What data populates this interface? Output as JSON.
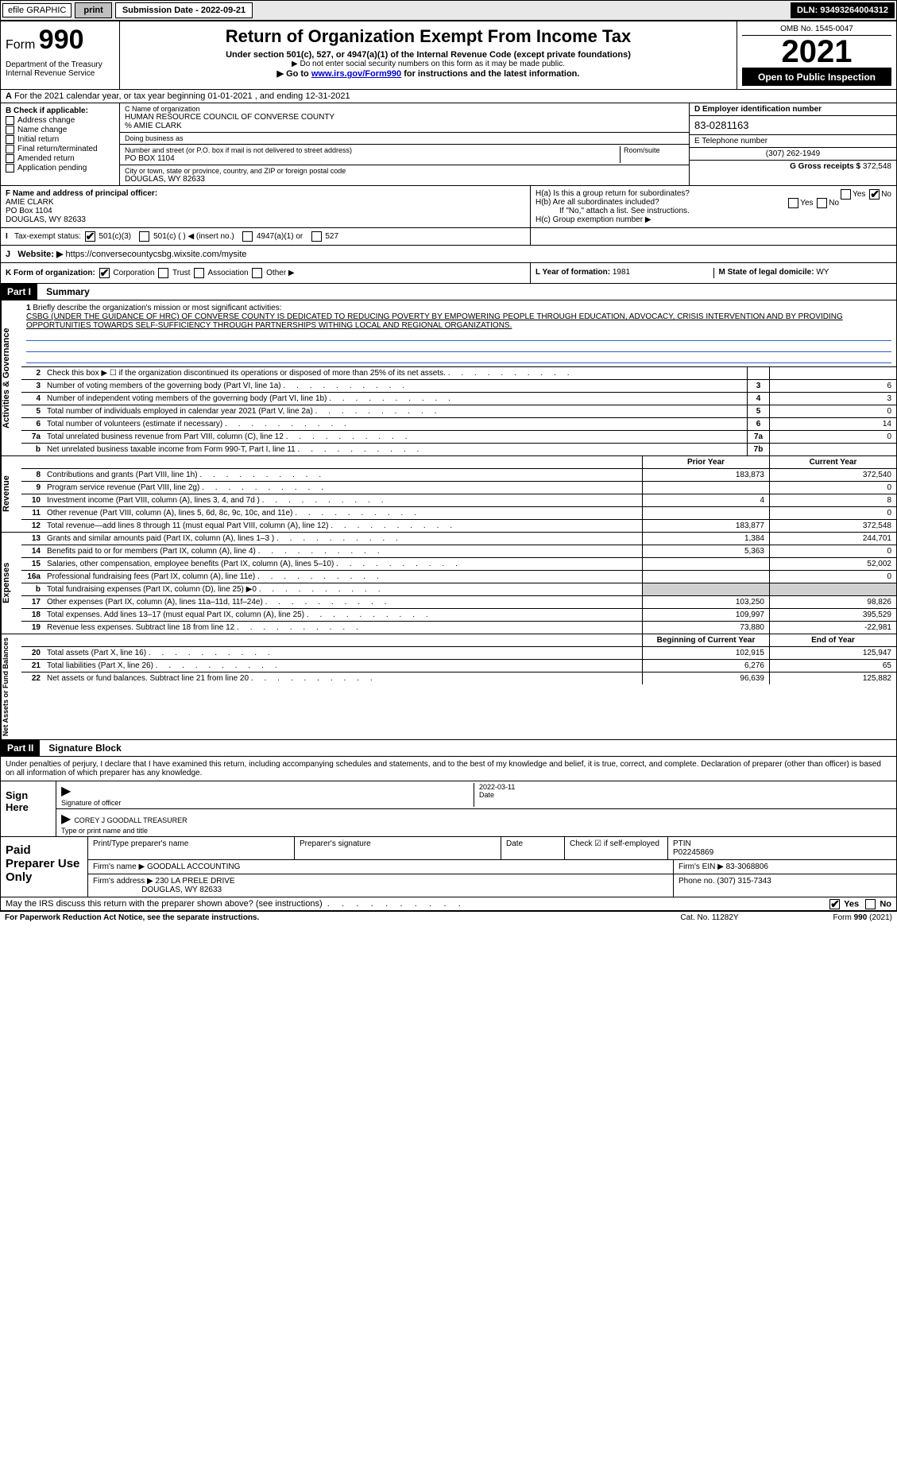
{
  "topbar": {
    "efile": "efile GRAPHIC",
    "print": "print",
    "subdate_label": "Submission Date - 2022-09-21",
    "dln": "DLN: 93493264004312"
  },
  "header": {
    "form_label": "Form",
    "form_num": "990",
    "title": "Return of Organization Exempt From Income Tax",
    "sub1": "Under section 501(c), 527, or 4947(a)(1) of the Internal Revenue Code (except private foundations)",
    "sub2": "▶ Do not enter social security numbers on this form as it may be made public.",
    "sub3_pre": "▶ Go to ",
    "sub3_link": "www.irs.gov/Form990",
    "sub3_post": " for instructions and the latest information.",
    "dept": "Department of the Treasury Internal Revenue Service",
    "omb": "OMB No. 1545-0047",
    "year": "2021",
    "open": "Open to Public Inspection"
  },
  "A": "For the 2021 calendar year, or tax year beginning 01-01-2021    , and ending 12-31-2021",
  "B": {
    "label": "B Check if applicable:",
    "items": [
      "Address change",
      "Name change",
      "Initial return",
      "Final return/terminated",
      "Amended return",
      "Application pending"
    ]
  },
  "C": {
    "name_label": "C Name of organization",
    "name": "HUMAN RESOURCE COUNCIL OF CONVERSE COUNTY",
    "care_label": "% AMIE CLARK",
    "dba_label": "Doing business as",
    "street_label": "Number and street (or P.O. box if mail is not delivered to street address)",
    "room_label": "Room/suite",
    "street": "PO BOX 1104",
    "city_label": "City or town, state or province, country, and ZIP or foreign postal code",
    "city": "DOUGLAS, WY  82633"
  },
  "D": {
    "ein_label": "D Employer identification number",
    "ein": "83-0281163",
    "phone_label": "E Telephone number",
    "phone": "(307) 262-1949",
    "gross_label": "G Gross receipts $",
    "gross": "372,548"
  },
  "F": {
    "label": "F  Name and address of principal officer:",
    "name": "AMIE CLARK",
    "addr1": "PO Box 1104",
    "addr2": "DOUGLAS, WY  82633"
  },
  "H": {
    "a": "H(a)  Is this a group return for subordinates?",
    "b": "H(b)  Are all subordinates included?",
    "b2": "If \"No,\" attach a list. See instructions.",
    "c": "H(c)  Group exemption number ▶",
    "yes": "Yes",
    "no": "No"
  },
  "I": {
    "label": "Tax-exempt status:",
    "opts": [
      "501(c)(3)",
      "501(c) (   ) ◀ (insert no.)",
      "4947(a)(1) or",
      "527"
    ]
  },
  "J": {
    "label": "Website: ▶",
    "url": "https://conversecountycsbg.wixsite.com/mysite"
  },
  "K": {
    "label": "K Form of organization:",
    "opts": [
      "Corporation",
      "Trust",
      "Association",
      "Other ▶"
    ]
  },
  "L": {
    "year_label": "L Year of formation:",
    "year": "1981",
    "state_label": "M State of legal domicile:",
    "state": "WY"
  },
  "part1": {
    "hdr": "Part I",
    "label": "Summary"
  },
  "mission": {
    "num": "1",
    "label": "Briefly describe the organization's mission or most significant activities:",
    "text": "CSBG (UNDER THE GUIDANCE OF HRC) OF CONVERSE COUNTY IS DEDICATED TO REDUCING POVERTY BY EMPOWERING PEOPLE THROUGH EDUCATION, ADVOCACY, CRISIS INTERVENTION AND BY PROVIDING OPPORTUNITIES TOWARDS SELF-SUFFICIENCY THROUGH PARTNERSHIPS WITHING LOCAL AND REGIONAL ORGANIZATIONS."
  },
  "gov": {
    "tab": "Activities & Governance",
    "rows": [
      {
        "n": "2",
        "t": "Check this box ▶ ☐  if the organization discontinued its operations or disposed of more than 25% of its net assets.",
        "box": "",
        "v": ""
      },
      {
        "n": "3",
        "t": "Number of voting members of the governing body (Part VI, line 1a)",
        "box": "3",
        "v": "6"
      },
      {
        "n": "4",
        "t": "Number of independent voting members of the governing body (Part VI, line 1b)",
        "box": "4",
        "v": "3"
      },
      {
        "n": "5",
        "t": "Total number of individuals employed in calendar year 2021 (Part V, line 2a)",
        "box": "5",
        "v": "0"
      },
      {
        "n": "6",
        "t": "Total number of volunteers (estimate if necessary)",
        "box": "6",
        "v": "14"
      },
      {
        "n": "7a",
        "t": "Total unrelated business revenue from Part VIII, column (C), line 12",
        "box": "7a",
        "v": "0"
      },
      {
        "n": "b",
        "t": "Net unrelated business taxable income from Form 990-T, Part I, line 11",
        "box": "7b",
        "v": ""
      }
    ]
  },
  "rev": {
    "tab": "Revenue",
    "hdr_prior": "Prior Year",
    "hdr_curr": "Current Year",
    "rows": [
      {
        "n": "8",
        "t": "Contributions and grants (Part VIII, line 1h)",
        "p": "183,873",
        "c": "372,540"
      },
      {
        "n": "9",
        "t": "Program service revenue (Part VIII, line 2g)",
        "p": "",
        "c": "0"
      },
      {
        "n": "10",
        "t": "Investment income (Part VIII, column (A), lines 3, 4, and 7d )",
        "p": "4",
        "c": "8"
      },
      {
        "n": "11",
        "t": "Other revenue (Part VIII, column (A), lines 5, 6d, 8c, 9c, 10c, and 11e)",
        "p": "",
        "c": "0"
      },
      {
        "n": "12",
        "t": "Total revenue—add lines 8 through 11 (must equal Part VIII, column (A), line 12)",
        "p": "183,877",
        "c": "372,548"
      }
    ]
  },
  "exp": {
    "tab": "Expenses",
    "rows": [
      {
        "n": "13",
        "t": "Grants and similar amounts paid (Part IX, column (A), lines 1–3 )",
        "p": "1,384",
        "c": "244,701"
      },
      {
        "n": "14",
        "t": "Benefits paid to or for members (Part IX, column (A), line 4)",
        "p": "5,363",
        "c": "0"
      },
      {
        "n": "15",
        "t": "Salaries, other compensation, employee benefits (Part IX, column (A), lines 5–10)",
        "p": "",
        "c": "52,002"
      },
      {
        "n": "16a",
        "t": "Professional fundraising fees (Part IX, column (A), line 11e)",
        "p": "",
        "c": "0"
      },
      {
        "n": "b",
        "t": "Total fundraising expenses (Part IX, column (D), line 25) ▶0",
        "p": "shaded",
        "c": "shaded"
      },
      {
        "n": "17",
        "t": "Other expenses (Part IX, column (A), lines 11a–11d, 11f–24e)",
        "p": "103,250",
        "c": "98,826"
      },
      {
        "n": "18",
        "t": "Total expenses. Add lines 13–17 (must equal Part IX, column (A), line 25)",
        "p": "109,997",
        "c": "395,529"
      },
      {
        "n": "19",
        "t": "Revenue less expenses. Subtract line 18 from line 12",
        "p": "73,880",
        "c": "-22,981"
      }
    ]
  },
  "net": {
    "tab": "Net Assets or Fund Balances",
    "hdr_beg": "Beginning of Current Year",
    "hdr_end": "End of Year",
    "rows": [
      {
        "n": "20",
        "t": "Total assets (Part X, line 16)",
        "p": "102,915",
        "c": "125,947"
      },
      {
        "n": "21",
        "t": "Total liabilities (Part X, line 26)",
        "p": "6,276",
        "c": "65"
      },
      {
        "n": "22",
        "t": "Net assets or fund balances. Subtract line 21 from line 20",
        "p": "96,639",
        "c": "125,882"
      }
    ]
  },
  "part2": {
    "hdr": "Part II",
    "label": "Signature Block"
  },
  "sig": {
    "penalty": "Under penalties of perjury, I declare that I have examined this return, including accompanying schedules and statements, and to the best of my knowledge and belief, it is true, correct, and complete. Declaration of preparer (other than officer) is based on all information of which preparer has any knowledge.",
    "sign_here": "Sign Here",
    "sig_officer": "Signature of officer",
    "date": "Date",
    "date_val": "2022-03-11",
    "name": "COREY J GOODALL  TREASURER",
    "name_label": "Type or print name and title"
  },
  "paid": {
    "label": "Paid Preparer Use Only",
    "h1": "Print/Type preparer's name",
    "h2": "Preparer's signature",
    "h3": "Date",
    "h4": "Check ☑ if self-employed",
    "h5_label": "PTIN",
    "h5": "P02245869",
    "firm_label": "Firm's name    ▶",
    "firm": "GOODALL ACCOUNTING",
    "ein_label": "Firm's EIN ▶",
    "ein": "83-3068806",
    "addr_label": "Firm's address ▶",
    "addr1": "230 LA PRELE DRIVE",
    "addr2": "DOUGLAS, WY  82633",
    "phone_label": "Phone no.",
    "phone": "(307) 315-7343"
  },
  "discuss": {
    "q": "May the IRS discuss this return with the preparer shown above? (see instructions)",
    "yes": "Yes",
    "no": "No"
  },
  "footer": {
    "l": "For Paperwork Reduction Act Notice, see the separate instructions.",
    "m": "Cat. No. 11282Y",
    "r": "Form 990 (2021)"
  }
}
